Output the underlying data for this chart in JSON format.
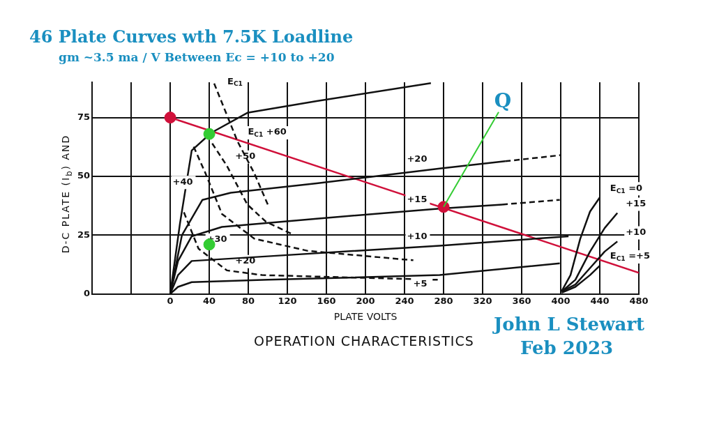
{
  "chart_data": {
    "type": "line",
    "title": "46 Plate Curves wth 7.5K Loadline",
    "subtitle": "gm ~3.5 ma / V Between Ec = +10 to +20",
    "xlabel": "PLATE VOLTS",
    "ylabel": "D-C PLATE (I$_{b}$) AND",
    "xlim": [
      -80,
      480
    ],
    "xticks": [
      {
        "value": -80,
        "label": null
      },
      {
        "value": -40,
        "label": null
      },
      0,
      40,
      80,
      120,
      160,
      200,
      240,
      280,
      320,
      360,
      400,
      440,
      480
    ],
    "ylim": [
      0,
      90
    ],
    "yticks": [
      0,
      25,
      50,
      75
    ],
    "grid": true,
    "legend": false,
    "marker": "none",
    "series": [
      {
        "color": "#111111",
        "x": [
          0,
          10,
          22,
          42,
          79,
          150,
          267
        ],
        "values": [
          0,
          30,
          61,
          68.5,
          77,
          82,
          89.6
        ]
      },
      {
        "color": "#111111",
        "x": [
          0,
          12,
          33,
          62,
          150,
          276,
          343
        ],
        "values": [
          0,
          25,
          40,
          43,
          47,
          53.3,
          56.4
        ]
      },
      {
        "color": "#111111",
        "line_style": "dashed",
        "x": [
          343,
          400
        ],
        "values": [
          56.4,
          59
        ]
      },
      {
        "color": "#111111",
        "x": [
          0,
          8,
          22,
          53,
          150,
          276,
          340
        ],
        "values": [
          0,
          14,
          24.5,
          28.5,
          32,
          36.3,
          38
        ]
      },
      {
        "color": "#111111",
        "line_style": "dashed",
        "x": [
          340,
          399
        ],
        "values": [
          38,
          40
        ]
      },
      {
        "color": "#111111",
        "x": [
          0,
          8,
          22,
          100,
          276,
          408
        ],
        "values": [
          0,
          8,
          14,
          16,
          20.5,
          24.5
        ]
      },
      {
        "color": "#111111",
        "x": [
          0,
          8,
          22,
          100,
          276,
          399
        ],
        "values": [
          0,
          3,
          5,
          6,
          8,
          13
        ]
      },
      {
        "color": "#111111",
        "line_style": "dashed",
        "x": [
          45,
          69,
          86,
          101
        ],
        "values": [
          89.5,
          64.8,
          51.4,
          37
        ]
      },
      {
        "color": "#111111",
        "line_style": "dashed",
        "x": [
          43,
          58,
          79,
          98,
          125
        ],
        "values": [
          64,
          54.5,
          38,
          30.7,
          25.4
        ]
      },
      {
        "color": "#111111",
        "line_style": "dashed",
        "x": [
          24,
          36,
          53,
          86,
          141,
          249
        ],
        "values": [
          62.6,
          51.4,
          34,
          23.5,
          18.3,
          14.3
        ]
      },
      {
        "color": "#111111",
        "line_style": "dashed",
        "x": [
          14,
          29,
          58,
          94,
          274
        ],
        "values": [
          34.7,
          19.2,
          10,
          8,
          6
        ]
      },
      {
        "color": "#111111",
        "x": [
          401,
          410,
          420,
          430,
          440
        ],
        "values": [
          1.2,
          8,
          23.5,
          35,
          41
        ]
      },
      {
        "color": "#111111",
        "x": [
          401,
          415,
          430,
          445,
          458
        ],
        "values": [
          1,
          6,
          18,
          28,
          34.4
        ]
      },
      {
        "color": "#111111",
        "x": [
          401,
          415,
          430,
          445,
          458
        ],
        "values": [
          1,
          4,
          11,
          18,
          22.3
        ]
      },
      {
        "color": "#111111",
        "x": [
          401,
          415,
          430,
          440
        ],
        "values": [
          0.5,
          3,
          8,
          12
        ]
      },
      {
        "color": "#d0103a",
        "x": [
          0,
          480
        ],
        "values": [
          75,
          9
        ]
      },
      {
        "type": "scatter",
        "marker": "circle",
        "color": "#d0103a",
        "x": [
          0,
          280
        ],
        "values": [
          75,
          37
        ]
      },
      {
        "type": "scatter",
        "marker": "circle",
        "color": "#33cc33",
        "x": [
          40,
          40
        ],
        "values": [
          68,
          21
        ]
      }
    ],
    "annotations": [
      {
        "text": "+20",
        "x": 276,
        "y": 53.3
      },
      {
        "text": "+15",
        "x": 276,
        "y": 36.3
      },
      {
        "text": "+10",
        "x": 276,
        "y": 20.5
      },
      {
        "text": "+5",
        "x": 276,
        "y": 8
      },
      {
        "text": "E$_{C1}$ =0",
        "x": 440,
        "y": 41
      },
      {
        "text": "+15",
        "x": 458,
        "y": 34.4
      },
      {
        "text": "+10",
        "x": 458,
        "y": 22.3
      },
      {
        "text": "E$_{C1}$ =+5",
        "x": 440,
        "y": 12
      },
      {
        "text": "E$_{C1}$",
        "x": 48,
        "y": 86.4
      },
      {
        "text": "E$_{C1}$ +60",
        "x": 69,
        "y": 64.8
      },
      {
        "text": "+50",
        "x": 58,
        "y": 54.5
      },
      {
        "text": "+40",
        "x": 36,
        "y": 51.4
      },
      {
        "text": "+30",
        "x": 29,
        "y": 19.2
      },
      {
        "text": "+20",
        "x": 58,
        "y": 10
      },
      {
        "text": "Q",
        "x": 280,
        "y": 37
      },
      "OPERATION CHARACTERISTICS",
      "John L Stewart",
      "Feb 2023"
    ]
  }
}
